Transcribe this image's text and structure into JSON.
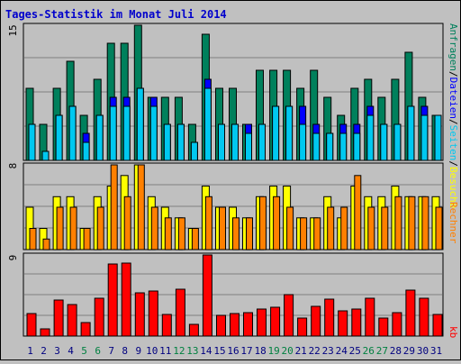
{
  "title": "Tages-Statistik im Monat Juli 2014",
  "colors": {
    "background": "#c0c0c0",
    "panel": "#c0c0c0",
    "title": "#0000cc",
    "anfragen": "#00805c",
    "dateien": "#0000ff",
    "seiten": "#00c8f0",
    "besuche": "#ffff00",
    "rechner": "#ff8000",
    "kb": "#ff0000",
    "day_normal": "#000080",
    "day_weekend": "#008040"
  },
  "legend": {
    "anfragen": "Anfragen",
    "dateien": "Dateien",
    "seiten": "Seiten",
    "besuche": "Besuche",
    "rechner": "Rechner",
    "kb": "kb",
    "sep1": "/",
    "sep2": "/",
    "sep3": "/"
  },
  "chart_data": {
    "type": "bar",
    "title": "Tages-Statistik im Monat Juli 2014",
    "categories": [
      "1",
      "2",
      "3",
      "4",
      "5",
      "6",
      "7",
      "8",
      "9",
      "10",
      "11",
      "12",
      "13",
      "14",
      "15",
      "16",
      "17",
      "18",
      "19",
      "20",
      "21",
      "22",
      "23",
      "24",
      "25",
      "26",
      "27",
      "28",
      "29",
      "30",
      "31"
    ],
    "weekend_days": [
      "5",
      "6",
      "12",
      "13",
      "19",
      "20",
      "26",
      "27"
    ],
    "panels": [
      {
        "axis_label": "15",
        "ymax": 15,
        "series": [
          {
            "name": "Anfragen",
            "values": [
              8,
              4,
              8,
              11,
              5,
              9,
              13,
              13,
              15,
              7,
              7,
              7,
              4,
              14,
              8,
              8,
              4,
              10,
              10,
              10,
              8,
              10,
              7,
              5,
              8,
              9,
              7,
              9,
              12,
              7,
              5
            ]
          },
          {
            "name": "Dateien",
            "values": [
              4,
              1,
              5,
              6,
              3,
              5,
              7,
              7,
              8,
              7,
              4,
              4,
              2,
              9,
              4,
              4,
              4,
              4,
              6,
              6,
              6,
              4,
              3,
              4,
              4,
              6,
              4,
              4,
              6,
              6,
              5
            ]
          },
          {
            "name": "Seiten",
            "values": [
              4,
              1,
              5,
              6,
              2,
              5,
              6,
              6,
              8,
              6,
              4,
              4,
              2,
              8,
              4,
              4,
              3,
              4,
              6,
              6,
              4,
              3,
              3,
              3,
              3,
              5,
              4,
              4,
              6,
              5,
              5
            ]
          }
        ]
      },
      {
        "axis_label": "8",
        "ymax": 8,
        "series": [
          {
            "name": "Besuche",
            "values": [
              4,
              2,
              5,
              5,
              2,
              5,
              6,
              7,
              8,
              5,
              4,
              3,
              2,
              6,
              4,
              4,
              3,
              5,
              6,
              6,
              3,
              3,
              5,
              3,
              6,
              5,
              5,
              6,
              5,
              5,
              5
            ]
          },
          {
            "name": "Rechner",
            "values": [
              2,
              1,
              4,
              4,
              2,
              4,
              8,
              5,
              8,
              4,
              3,
              3,
              2,
              5,
              4,
              3,
              3,
              5,
              5,
              4,
              3,
              3,
              4,
              4,
              7,
              4,
              4,
              5,
              5,
              5,
              4
            ]
          }
        ]
      },
      {
        "axis_label": "9",
        "ymax": 9,
        "series": [
          {
            "name": "kb",
            "values": [
              2.5,
              0.8,
              4.0,
              3.5,
              1.5,
              4.2,
              8.0,
              8.1,
              4.8,
              5.0,
              2.4,
              5.2,
              1.3,
              9.0,
              2.3,
              2.5,
              2.6,
              3.0,
              3.2,
              4.6,
              2.0,
              3.3,
              4.1,
              2.8,
              3.0,
              4.2,
              2.0,
              2.6,
              5.1,
              4.2,
              2.4
            ]
          }
        ]
      }
    ]
  }
}
